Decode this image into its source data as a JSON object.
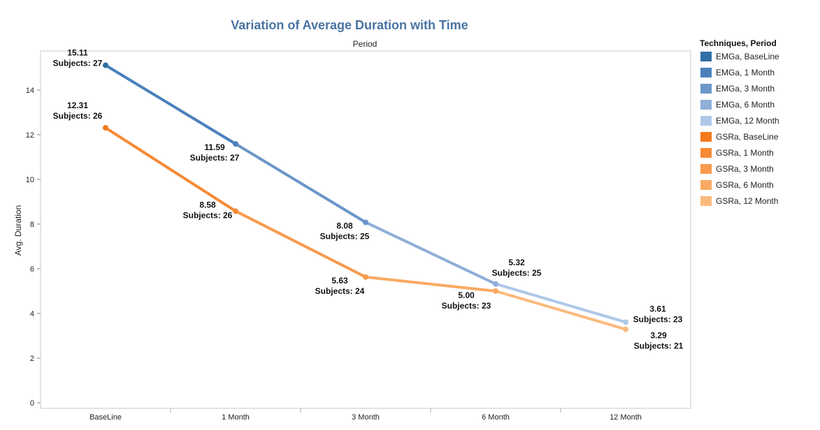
{
  "chart_data": {
    "type": "line",
    "title": "Variation of Average Duration with Time",
    "column_header": "Period",
    "xlabel": "",
    "ylabel": "Avg. Duration",
    "categories": [
      "BaseLine",
      "1 Month",
      "3 Month",
      "6 Month",
      "12 Month"
    ],
    "ylim": [
      0,
      16
    ],
    "yticks": [
      0,
      2,
      4,
      6,
      8,
      10,
      12,
      14
    ],
    "grid": false,
    "legend_position": "right",
    "legend_title": "Techniques, Period",
    "legend_entries": [
      {
        "label": "EMGa, BaseLine",
        "color": "#2f6fa7"
      },
      {
        "label": "EMGa, 1 Month",
        "color": "#4a81bc"
      },
      {
        "label": "EMGa, 3 Month",
        "color": "#6b96c9"
      },
      {
        "label": "EMGa, 6 Month",
        "color": "#8faed8"
      },
      {
        "label": "EMGa, 12 Month",
        "color": "#aec8e8"
      },
      {
        "label": "GSRa, BaseLine",
        "color": "#f57a1c"
      },
      {
        "label": "GSRa, 1 Month",
        "color": "#f68a35"
      },
      {
        "label": "GSRa, 3 Month",
        "color": "#f89a4c"
      },
      {
        "label": "GSRa, 6 Month",
        "color": "#f9a962"
      },
      {
        "label": "GSRa, 12 Month",
        "color": "#fbba7d"
      }
    ],
    "series": [
      {
        "technique": "EMGa",
        "values": [
          15.11,
          11.59,
          8.08,
          5.32,
          3.61
        ],
        "value_labels": [
          "15.11",
          "11.59",
          "8.08",
          "5.32",
          "3.61"
        ],
        "subject_labels": [
          "Subjects: 27",
          "Subjects: 27",
          "Subjects: 25",
          "Subjects: 25",
          "Subjects: 23"
        ],
        "point_colors": [
          "#2f6fa7",
          "#4a81bc",
          "#6b96c9",
          "#8faed8",
          "#aec8e8"
        ]
      },
      {
        "technique": "GSRa",
        "values": [
          12.31,
          8.58,
          5.63,
          5.0,
          3.29
        ],
        "value_labels": [
          "12.31",
          "8.58",
          "5.63",
          "5.00",
          "3.29"
        ],
        "subject_labels": [
          "Subjects: 26",
          "Subjects: 26",
          "Subjects: 24",
          "Subjects: 23",
          "Subjects: 21"
        ],
        "point_colors": [
          "#f57a1c",
          "#f68a35",
          "#f89a4c",
          "#f9a962",
          "#fbba7d"
        ]
      }
    ]
  }
}
